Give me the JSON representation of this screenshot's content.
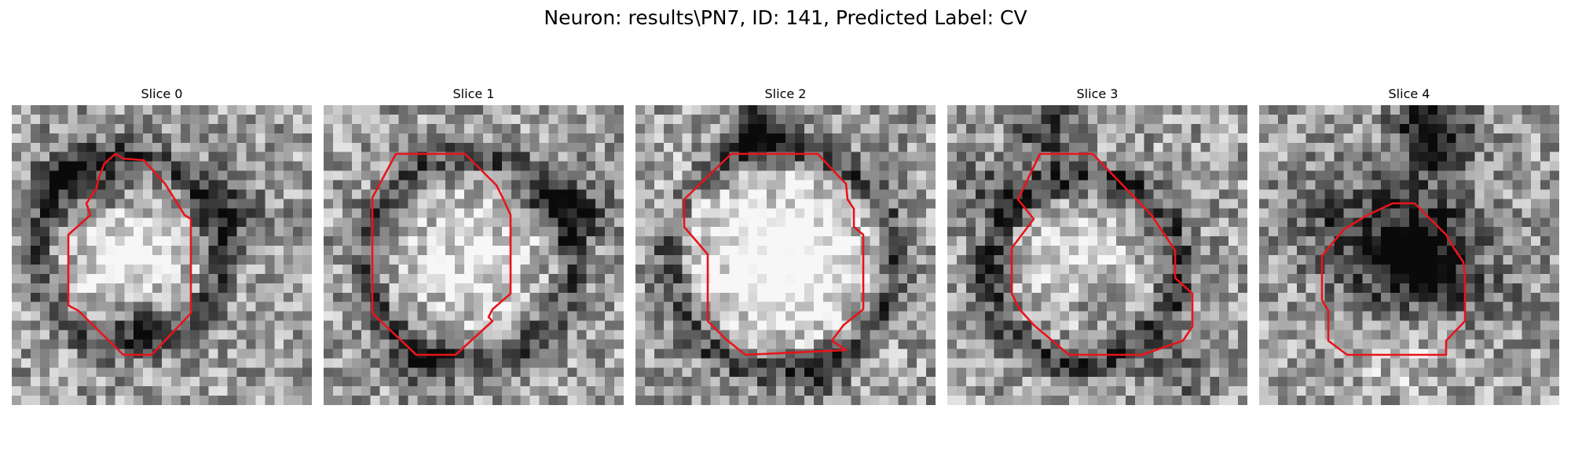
{
  "figure": {
    "title": "Neuron: results\\PN7, ID: 141, Predicted Label: CV",
    "contour_color": "#e8141b"
  },
  "panels": [
    {
      "title": "Slice 0"
    },
    {
      "title": "Slice 1"
    },
    {
      "title": "Slice 2"
    },
    {
      "title": "Slice 3"
    },
    {
      "title": "Slice 4"
    }
  ]
}
